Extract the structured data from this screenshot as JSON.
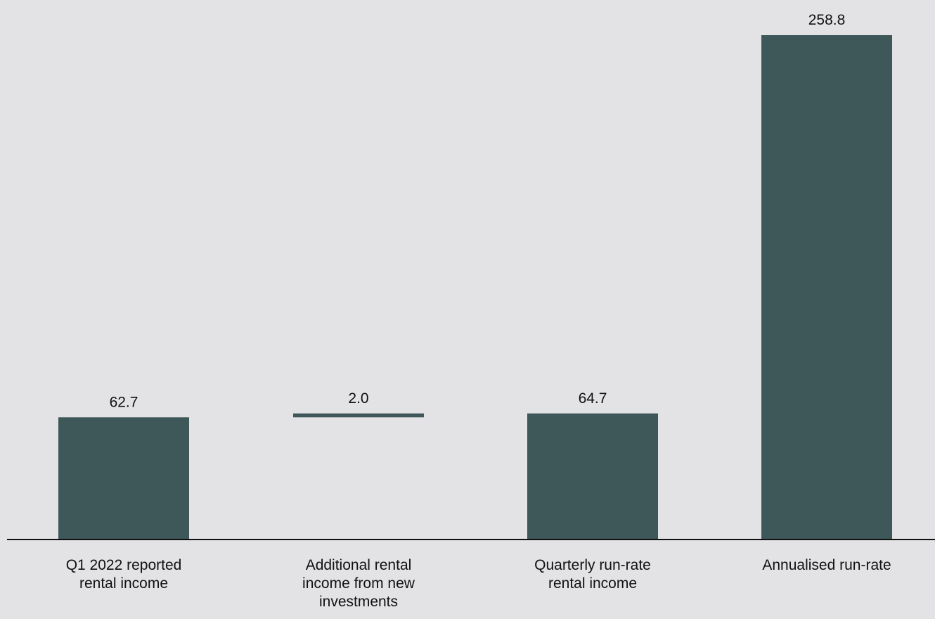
{
  "chart_data": {
    "type": "bar",
    "subtype": "waterfall",
    "categories": [
      "Q1 2022 reported\nrental income",
      "Additional rental\nincome from new\ninvestments",
      "Quarterly run-rate\nrental income",
      "Annualised run-rate"
    ],
    "series": [
      {
        "values": [
          62.7,
          2.0,
          64.7,
          258.8
        ],
        "bases": [
          0,
          62.7,
          0,
          0
        ],
        "data_labels": [
          "62.7",
          "2.0",
          "64.7",
          "258.8"
        ]
      }
    ],
    "bar_color": "#3e5758",
    "background_color": "#e3e2e4",
    "ylim": [
      0,
      258.8
    ],
    "y_axis_visible": false,
    "grid": false,
    "legend": "none"
  }
}
